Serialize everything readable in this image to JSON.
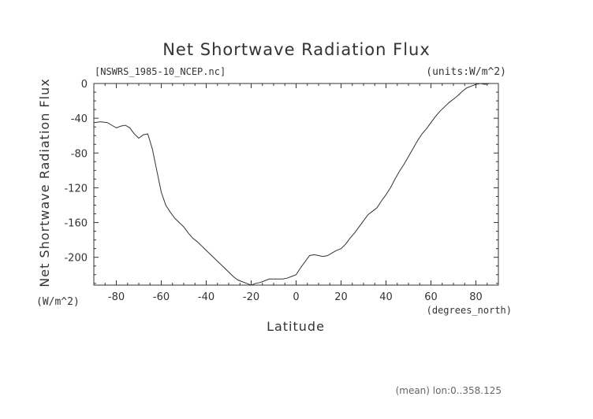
{
  "chart_data": {
    "type": "line",
    "title": "Net Shortwave Radiation Flux",
    "source_label": "[NSWRS_1985-10_NCEP.nc]",
    "units_label": "(units:W/m^2)",
    "ylabel": "Net Shortwave Radiation Flux",
    "ylabel_units": "(W/m^2)",
    "xlabel": "Latitude",
    "xlabel_units": "(degrees_north)",
    "footer": "(mean) lon:0..358.125",
    "xlim": [
      -90,
      90
    ],
    "ylim": [
      -232,
      0
    ],
    "xticks": [
      -80,
      -60,
      -40,
      -20,
      0,
      20,
      40,
      60,
      80
    ],
    "yticks": [
      0,
      -40,
      -80,
      -120,
      -160,
      -200
    ],
    "x": [
      -90,
      -87,
      -84,
      -82,
      -80,
      -78,
      -76,
      -74,
      -72,
      -70,
      -68,
      -66,
      -64,
      -62,
      -60,
      -58,
      -56,
      -54,
      -52,
      -50,
      -48,
      -46,
      -44,
      -42,
      -40,
      -38,
      -36,
      -34,
      -32,
      -30,
      -28,
      -26,
      -24,
      -22,
      -20,
      -18,
      -16,
      -14,
      -12,
      -10,
      -8,
      -6,
      -4,
      -2,
      0,
      2,
      4,
      6,
      8,
      10,
      12,
      14,
      16,
      18,
      20,
      22,
      24,
      26,
      28,
      30,
      32,
      34,
      36,
      38,
      40,
      42,
      44,
      46,
      48,
      50,
      52,
      54,
      56,
      58,
      60,
      62,
      64,
      66,
      68,
      70,
      72,
      74,
      76,
      78,
      80,
      82,
      84,
      86,
      88,
      90
    ],
    "values": [
      -45,
      -44,
      -45,
      -48,
      -51,
      -49,
      -48,
      -51,
      -58,
      -63,
      -59,
      -58,
      -75,
      -100,
      -125,
      -140,
      -148,
      -155,
      -160,
      -165,
      -172,
      -178,
      -182,
      -187,
      -192,
      -197,
      -202,
      -207,
      -212,
      -217,
      -222,
      -226,
      -228,
      -230,
      -232,
      -230,
      -229,
      -227,
      -225,
      -225,
      -225,
      -225,
      -224,
      -222,
      -220,
      -212,
      -205,
      -198,
      -197,
      -198,
      -199,
      -198,
      -195,
      -192,
      -190,
      -185,
      -178,
      -172,
      -165,
      -158,
      -151,
      -147,
      -143,
      -135,
      -128,
      -120,
      -110,
      -101,
      -93,
      -84,
      -75,
      -66,
      -58,
      -52,
      -45,
      -38,
      -32,
      -27,
      -22,
      -18,
      -14,
      -9,
      -5,
      -3,
      -1,
      0,
      -1,
      0,
      0,
      0
    ]
  }
}
